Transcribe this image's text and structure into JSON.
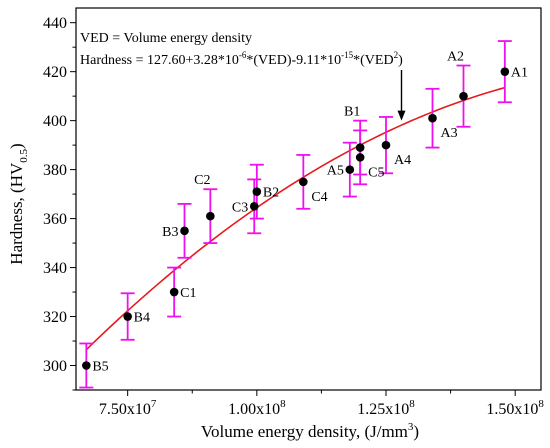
{
  "chart_data": {
    "type": "scatter",
    "title": "",
    "xlabel": {
      "text": "Volume energy density, (J/mm",
      "sup": "3",
      "close": ")"
    },
    "ylabel": {
      "text": "Hardness, (HV",
      "sub": "0.5",
      "close": ")"
    },
    "xlim": [
      65000000,
      155000000
    ],
    "ylim": [
      290,
      446
    ],
    "x_ticks": [
      {
        "value": 75000000,
        "base": "7.50x10",
        "exp": "7"
      },
      {
        "value": 100000000,
        "base": "1.00x10",
        "exp": "8"
      },
      {
        "value": 125000000,
        "base": "1.25x10",
        "exp": "8"
      },
      {
        "value": 150000000,
        "base": "1.50x10",
        "exp": "8"
      }
    ],
    "y_ticks": [
      300,
      320,
      340,
      360,
      380,
      400,
      420,
      440
    ],
    "annotation": {
      "line1": "VED = Volume energy density",
      "line2_a": "Hardness = 127.60+3.28*10",
      "line2_sup1": "-6",
      "line2_b": "*(VED)-9.11*10",
      "line2_sup2": "-15",
      "line2_c": "*(VED",
      "line2_sup3": "2",
      "line2_d": ")"
    },
    "arrow_tip": {
      "x": 128000000,
      "y": 400
    },
    "fit": {
      "a": 127.6,
      "b": 3.28e-06,
      "c": -9.11e-15,
      "x_range": [
        67000000,
        148000000
      ],
      "color": "#e8191c"
    },
    "colors": {
      "points": "#000000",
      "error_bars": "#ee10ee"
    },
    "points": [
      {
        "label": "B5",
        "x": 67000000,
        "y": 300,
        "err": 9,
        "label_pos": "right"
      },
      {
        "label": "B4",
        "x": 75000000,
        "y": 320,
        "err": 9.5,
        "label_pos": "right"
      },
      {
        "label": "C1",
        "x": 84000000,
        "y": 330,
        "err": 10,
        "label_pos": "right"
      },
      {
        "label": "B3",
        "x": 86000000,
        "y": 355,
        "err": 11,
        "label_pos": "left"
      },
      {
        "label": "C2",
        "x": 91000000,
        "y": 361,
        "err": 11,
        "label_pos": "above"
      },
      {
        "label": "C3",
        "x": 99500000,
        "y": 365,
        "err": 11,
        "label_pos": "left"
      },
      {
        "label": "B2",
        "x": 100000000,
        "y": 371,
        "err": 11,
        "label_pos": "right"
      },
      {
        "label": "C4",
        "x": 109000000,
        "y": 375,
        "err": 11,
        "label_pos": "below"
      },
      {
        "label": "A5",
        "x": 118000000,
        "y": 380,
        "err": 11,
        "label_pos": "left"
      },
      {
        "label": "C5",
        "x": 120000000,
        "y": 385,
        "err": 11,
        "label_pos": "below"
      },
      {
        "label": "B1",
        "x": 120000000,
        "y": 389,
        "err": 11,
        "label_pos": "above"
      },
      {
        "label": "A4",
        "x": 125000000,
        "y": 390,
        "err": 11.5,
        "label_pos": "below"
      },
      {
        "label": "A3",
        "x": 134000000,
        "y": 401,
        "err": 12,
        "label_pos": "below"
      },
      {
        "label": "A2",
        "x": 140000000,
        "y": 410,
        "err": 12.5,
        "label_pos": "above"
      },
      {
        "label": "A1",
        "x": 148000000,
        "y": 420,
        "err": 12.5,
        "label_pos": "right"
      }
    ]
  }
}
